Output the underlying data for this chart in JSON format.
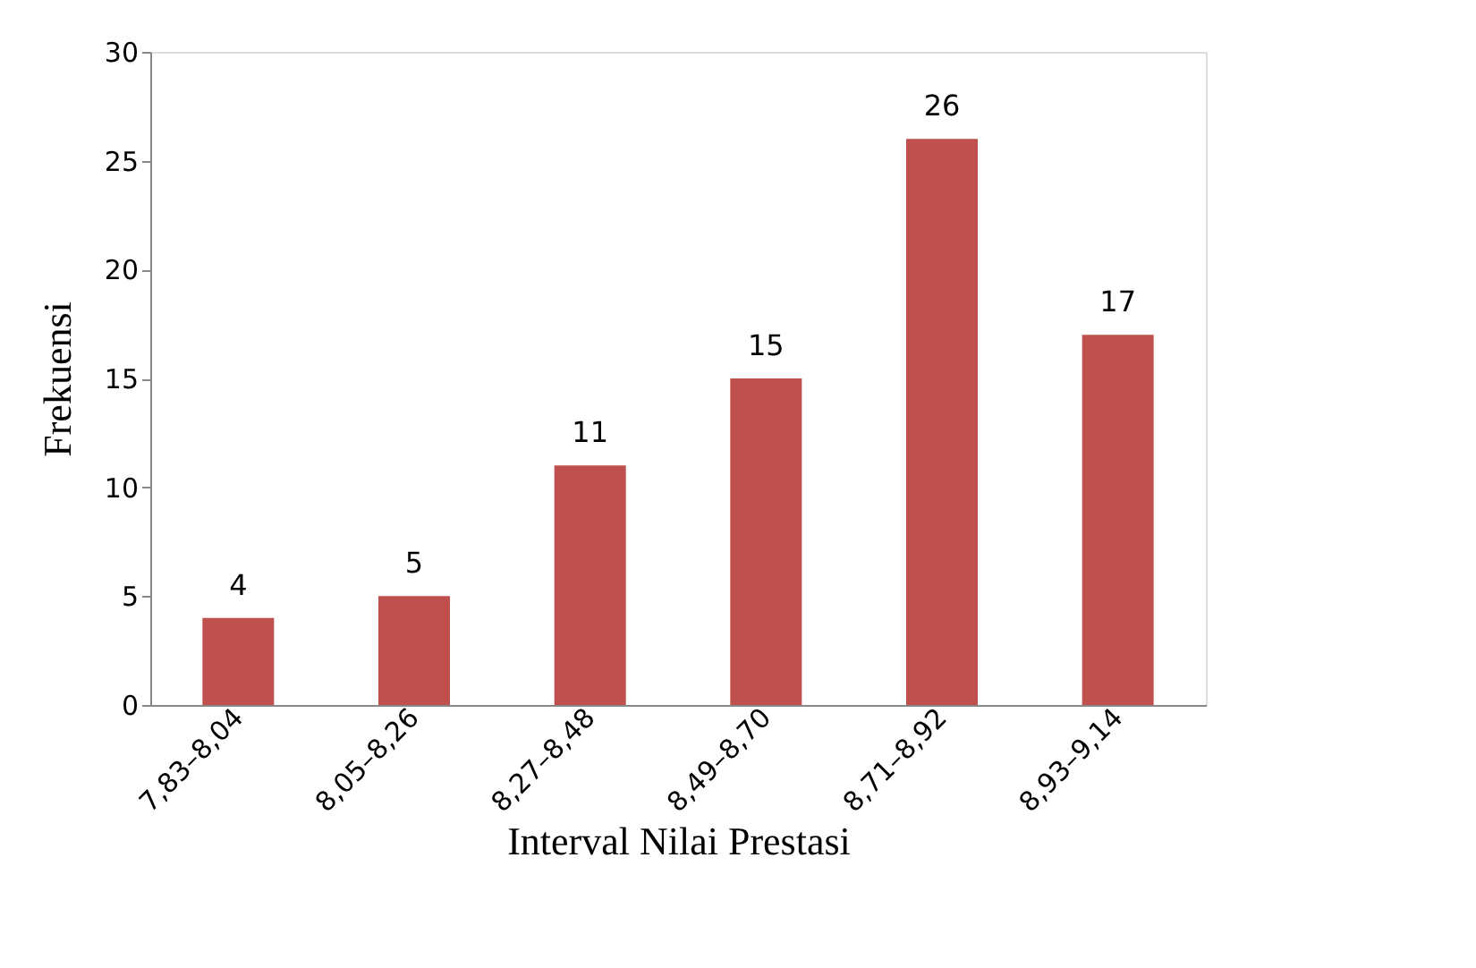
{
  "chart_data": {
    "type": "bar",
    "xlabel": "Interval Nilai Prestasi",
    "ylabel": "Frekuensi",
    "categories": [
      "7,83–8,04",
      "8,05–8,26",
      "8,27–8,48",
      "8,49–8,70",
      "8,71–8,92",
      "8,93–9,14"
    ],
    "values": [
      4,
      5,
      11,
      15,
      26,
      17
    ],
    "color": "#c0504d",
    "ylim": [
      0,
      30
    ],
    "yticks": [
      0,
      5,
      10,
      15,
      20,
      25,
      30
    ],
    "grid": false,
    "data_labels": true
  }
}
